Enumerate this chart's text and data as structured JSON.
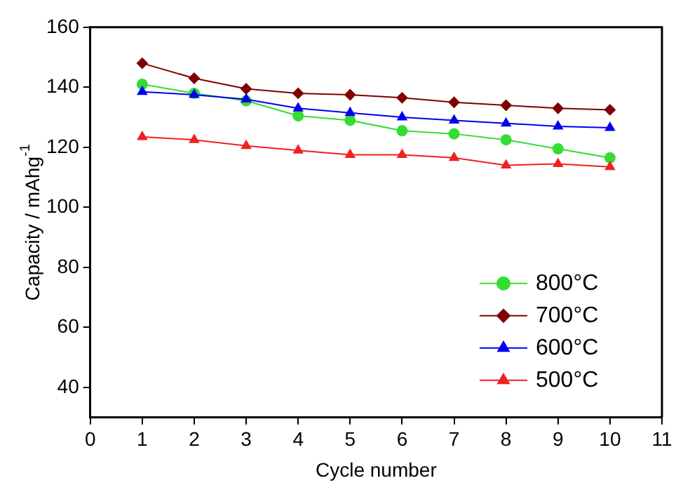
{
  "chart_data": {
    "type": "line",
    "xlabel": "Cycle number",
    "ylabel": "Capacity / mAhg$^{-1}$",
    "x": [
      1,
      2,
      3,
      4,
      5,
      6,
      7,
      8,
      9,
      10
    ],
    "xlim": [
      0,
      11
    ],
    "xticks": [
      0,
      1,
      2,
      3,
      4,
      5,
      6,
      7,
      8,
      9,
      10,
      11
    ],
    "ylim": [
      30,
      160
    ],
    "yticks": [
      40,
      60,
      80,
      100,
      120,
      140,
      160
    ],
    "grid": false,
    "legend": "bottom right",
    "line_style": "solid",
    "series": [
      {
        "name": "800°C",
        "color": "#33dd33",
        "marker": "circle",
        "values": [
          141,
          138,
          135.5,
          130.5,
          129,
          125.5,
          124.5,
          122.5,
          119.5,
          116.5
        ]
      },
      {
        "name": "700°C",
        "color": "#800000",
        "marker": "diamond",
        "values": [
          148,
          143,
          139.5,
          138,
          137.5,
          136.5,
          135,
          134,
          133,
          132.5
        ]
      },
      {
        "name": "600°C",
        "color": "#0000ee",
        "marker": "triangle",
        "values": [
          138.5,
          137.5,
          136,
          133,
          131.5,
          130,
          129,
          128,
          127,
          126.5
        ]
      },
      {
        "name": "500°C",
        "color": "#ee2222",
        "marker": "triangle",
        "values": [
          123.5,
          122.5,
          120.5,
          119,
          117.5,
          117.5,
          116.5,
          114,
          114.5,
          113.5
        ]
      }
    ]
  }
}
